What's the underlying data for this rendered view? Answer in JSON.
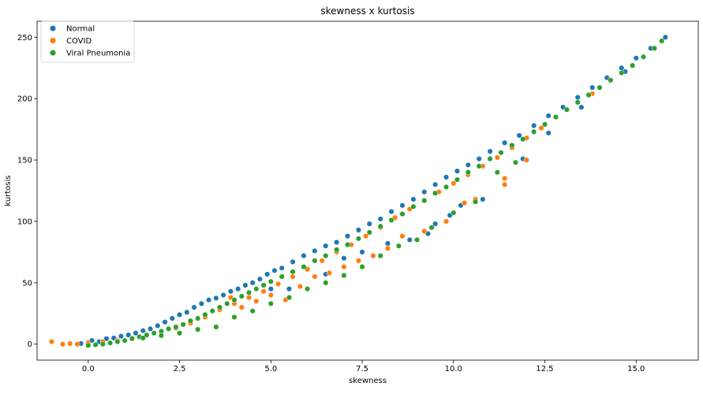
{
  "chart_data": {
    "type": "scatter",
    "title": "skewness x kurtosis",
    "xlabel": "skewness",
    "ylabel": "kurtosis",
    "xlim": [
      -1.4,
      16.7
    ],
    "ylim": [
      -13,
      263
    ],
    "xticks": [
      0.0,
      2.5,
      5.0,
      7.5,
      10.0,
      12.5,
      15.0
    ],
    "xtick_labels": [
      "0.0",
      "2.5",
      "5.0",
      "7.5",
      "10.0",
      "12.5",
      "15.0"
    ],
    "yticks": [
      0,
      50,
      100,
      150,
      200,
      250
    ],
    "ytick_labels": [
      "0",
      "50",
      "100",
      "150",
      "200",
      "250"
    ],
    "grid": false,
    "legend_position": "top-left",
    "series": [
      {
        "name": "Normal",
        "color": "#1f77b4",
        "points": [
          [
            -0.2,
            0.5
          ],
          [
            0.0,
            1.5
          ],
          [
            0.1,
            3.0
          ],
          [
            0.3,
            2.0
          ],
          [
            0.5,
            4.5
          ],
          [
            0.7,
            5.0
          ],
          [
            0.9,
            6.5
          ],
          [
            1.1,
            7.5
          ],
          [
            1.3,
            9.0
          ],
          [
            1.5,
            11.0
          ],
          [
            1.7,
            12.5
          ],
          [
            1.9,
            15.0
          ],
          [
            2.1,
            18.0
          ],
          [
            2.3,
            21.0
          ],
          [
            2.5,
            24.0
          ],
          [
            2.7,
            26.0
          ],
          [
            2.9,
            30.0
          ],
          [
            3.1,
            33.0
          ],
          [
            3.3,
            36.0
          ],
          [
            3.5,
            37.5
          ],
          [
            3.7,
            40.0
          ],
          [
            3.9,
            43.0
          ],
          [
            4.1,
            45.0
          ],
          [
            4.3,
            48.0
          ],
          [
            4.5,
            50.0
          ],
          [
            4.7,
            53.0
          ],
          [
            4.9,
            57.0
          ],
          [
            5.1,
            60.0
          ],
          [
            5.3,
            62.0
          ],
          [
            5.6,
            67.0
          ],
          [
            5.9,
            72.0
          ],
          [
            6.2,
            76.0
          ],
          [
            6.5,
            80.0
          ],
          [
            6.8,
            83.0
          ],
          [
            7.1,
            88.0
          ],
          [
            7.4,
            93.0
          ],
          [
            7.7,
            98.0
          ],
          [
            8.0,
            102.0
          ],
          [
            8.3,
            108.0
          ],
          [
            8.6,
            113.0
          ],
          [
            8.9,
            118.0
          ],
          [
            9.2,
            124.0
          ],
          [
            9.5,
            130.0
          ],
          [
            9.8,
            136.0
          ],
          [
            10.1,
            141.0
          ],
          [
            10.4,
            146.0
          ],
          [
            10.7,
            151.0
          ],
          [
            11.0,
            157.0
          ],
          [
            11.4,
            164.0
          ],
          [
            11.8,
            170.0
          ],
          [
            12.2,
            178.0
          ],
          [
            12.6,
            186.0
          ],
          [
            13.0,
            193.0
          ],
          [
            13.4,
            201.0
          ],
          [
            13.8,
            209.0
          ],
          [
            14.2,
            217.0
          ],
          [
            14.6,
            225.0
          ],
          [
            15.0,
            233.0
          ],
          [
            15.4,
            241.0
          ],
          [
            15.8,
            250.0
          ],
          [
            5.0,
            45.0
          ],
          [
            5.5,
            45.0
          ],
          [
            6.5,
            57.0
          ],
          [
            7.0,
            70.0
          ],
          [
            7.5,
            75.0
          ],
          [
            8.2,
            82.0
          ],
          [
            8.8,
            85.0
          ],
          [
            9.3,
            90.0
          ],
          [
            9.5,
            98.0
          ],
          [
            9.9,
            105.0
          ],
          [
            10.2,
            113.0
          ],
          [
            10.8,
            118.0
          ],
          [
            11.9,
            151.0
          ],
          [
            12.6,
            172.0
          ],
          [
            13.5,
            193.0
          ],
          [
            14.7,
            222.0
          ]
        ]
      },
      {
        "name": "COVID",
        "color": "#ff7f0e",
        "points": [
          [
            -1.0,
            2.0
          ],
          [
            -0.7,
            0.0
          ],
          [
            -0.5,
            0.5
          ],
          [
            -0.3,
            0.0
          ],
          [
            0.0,
            1.0
          ],
          [
            0.4,
            2.0
          ],
          [
            0.8,
            3.0
          ],
          [
            1.2,
            5.0
          ],
          [
            1.6,
            7.5
          ],
          [
            2.0,
            10.0
          ],
          [
            2.4,
            13.0
          ],
          [
            2.8,
            17.0
          ],
          [
            3.2,
            22.0
          ],
          [
            3.6,
            28.0
          ],
          [
            4.0,
            33.0
          ],
          [
            4.4,
            38.0
          ],
          [
            4.8,
            43.0
          ],
          [
            5.2,
            49.0
          ],
          [
            5.6,
            55.0
          ],
          [
            6.0,
            61.0
          ],
          [
            6.4,
            68.0
          ],
          [
            6.8,
            75.0
          ],
          [
            7.2,
            81.0
          ],
          [
            7.6,
            88.0
          ],
          [
            8.0,
            95.0
          ],
          [
            8.4,
            103.0
          ],
          [
            8.8,
            110.0
          ],
          [
            9.2,
            117.0
          ],
          [
            9.6,
            124.0
          ],
          [
            10.0,
            131.0
          ],
          [
            10.4,
            138.0
          ],
          [
            10.8,
            145.0
          ],
          [
            11.2,
            152.0
          ],
          [
            11.6,
            160.0
          ],
          [
            12.0,
            168.0
          ],
          [
            12.4,
            176.0
          ],
          [
            3.9,
            38.0
          ],
          [
            4.2,
            30.0
          ],
          [
            4.6,
            35.0
          ],
          [
            5.0,
            40.0
          ],
          [
            5.4,
            36.0
          ],
          [
            5.8,
            47.0
          ],
          [
            6.2,
            55.0
          ],
          [
            6.6,
            58.0
          ],
          [
            7.0,
            63.0
          ],
          [
            7.4,
            68.0
          ],
          [
            7.8,
            72.0
          ],
          [
            8.2,
            78.0
          ],
          [
            8.6,
            88.0
          ],
          [
            9.2,
            92.0
          ],
          [
            9.8,
            100.0
          ],
          [
            10.3,
            115.0
          ],
          [
            10.6,
            118.0
          ],
          [
            11.4,
            135.0
          ],
          [
            11.4,
            130.0
          ],
          [
            12.0,
            150.0
          ],
          [
            13.8,
            204.0
          ]
        ]
      },
      {
        "name": "Viral Pneumonia",
        "color": "#2ca02c",
        "points": [
          [
            0.0,
            -1.0
          ],
          [
            0.2,
            -0.5
          ],
          [
            0.4,
            0.0
          ],
          [
            0.6,
            1.0
          ],
          [
            0.8,
            2.0
          ],
          [
            1.0,
            3.0
          ],
          [
            1.2,
            4.5
          ],
          [
            1.4,
            6.0
          ],
          [
            1.6,
            7.5
          ],
          [
            1.8,
            9.0
          ],
          [
            2.0,
            10.5
          ],
          [
            2.2,
            12.5
          ],
          [
            2.4,
            14.0
          ],
          [
            2.6,
            16.0
          ],
          [
            2.8,
            19.0
          ],
          [
            3.0,
            21.0
          ],
          [
            3.2,
            24.0
          ],
          [
            3.4,
            27.0
          ],
          [
            3.6,
            30.0
          ],
          [
            3.8,
            33.0
          ],
          [
            4.0,
            36.0
          ],
          [
            4.2,
            39.0
          ],
          [
            4.4,
            42.0
          ],
          [
            4.6,
            45.0
          ],
          [
            4.8,
            48.0
          ],
          [
            5.0,
            51.0
          ],
          [
            5.3,
            55.0
          ],
          [
            5.6,
            59.0
          ],
          [
            5.9,
            63.0
          ],
          [
            6.2,
            68.0
          ],
          [
            6.5,
            72.0
          ],
          [
            6.8,
            77.0
          ],
          [
            7.1,
            81.0
          ],
          [
            7.4,
            86.0
          ],
          [
            7.7,
            91.0
          ],
          [
            8.0,
            96.0
          ],
          [
            8.3,
            101.0
          ],
          [
            8.6,
            106.0
          ],
          [
            8.9,
            112.0
          ],
          [
            9.2,
            117.0
          ],
          [
            9.5,
            123.0
          ],
          [
            9.8,
            128.0
          ],
          [
            10.1,
            134.0
          ],
          [
            10.4,
            140.0
          ],
          [
            10.7,
            145.0
          ],
          [
            11.0,
            151.0
          ],
          [
            11.3,
            156.0
          ],
          [
            11.6,
            162.0
          ],
          [
            11.9,
            167.0
          ],
          [
            12.2,
            173.0
          ],
          [
            12.5,
            179.0
          ],
          [
            12.8,
            185.0
          ],
          [
            13.1,
            191.0
          ],
          [
            13.4,
            197.0
          ],
          [
            13.7,
            203.0
          ],
          [
            14.0,
            209.0
          ],
          [
            14.3,
            215.0
          ],
          [
            14.6,
            221.0
          ],
          [
            14.9,
            227.0
          ],
          [
            15.2,
            234.0
          ],
          [
            15.5,
            241.0
          ],
          [
            15.7,
            247.0
          ],
          [
            1.5,
            5.0
          ],
          [
            2.0,
            7.0
          ],
          [
            2.5,
            9.0
          ],
          [
            3.0,
            12.0
          ],
          [
            3.5,
            14.0
          ],
          [
            4.0,
            22.0
          ],
          [
            4.5,
            27.0
          ],
          [
            5.0,
            33.0
          ],
          [
            5.5,
            38.0
          ],
          [
            6.0,
            45.0
          ],
          [
            6.5,
            50.0
          ],
          [
            7.0,
            56.0
          ],
          [
            7.5,
            63.0
          ],
          [
            8.0,
            72.0
          ],
          [
            8.5,
            80.0
          ],
          [
            9.0,
            85.0
          ],
          [
            9.4,
            95.0
          ],
          [
            10.0,
            107.0
          ],
          [
            10.6,
            116.0
          ],
          [
            11.2,
            140.0
          ],
          [
            11.7,
            148.0
          ]
        ]
      }
    ]
  }
}
